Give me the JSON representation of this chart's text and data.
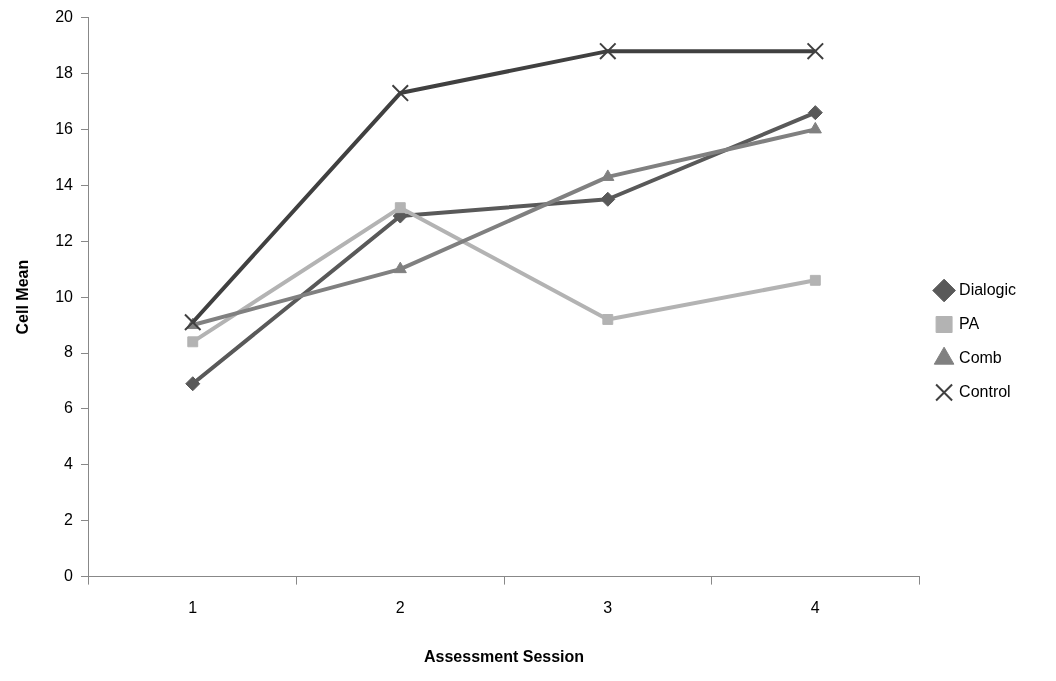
{
  "chart_data": {
    "type": "line",
    "xlabel": "Assessment Session",
    "ylabel": "Cell Mean",
    "categories": [
      "1",
      "2",
      "3",
      "4"
    ],
    "ylim": [
      0,
      20
    ],
    "yticks": [
      0,
      2,
      4,
      6,
      8,
      10,
      12,
      14,
      16,
      18,
      20
    ],
    "grid": false,
    "legend": "right",
    "line_style": "solid",
    "series": [
      {
        "name": "Dialogic",
        "color": "#595959",
        "marker": "diamond",
        "values": [
          6.9,
          12.9,
          13.5,
          16.6
        ]
      },
      {
        "name": "PA",
        "color": "#b3b3b3",
        "marker": "square",
        "values": [
          8.4,
          13.2,
          9.2,
          10.6
        ]
      },
      {
        "name": "Comb",
        "color": "#808080",
        "marker": "triangle",
        "values": [
          9.0,
          11.0,
          14.3,
          16.0
        ]
      },
      {
        "name": "Control",
        "color": "#404040",
        "marker": "cross",
        "values": [
          9.1,
          17.3,
          18.8,
          18.8
        ]
      }
    ]
  }
}
